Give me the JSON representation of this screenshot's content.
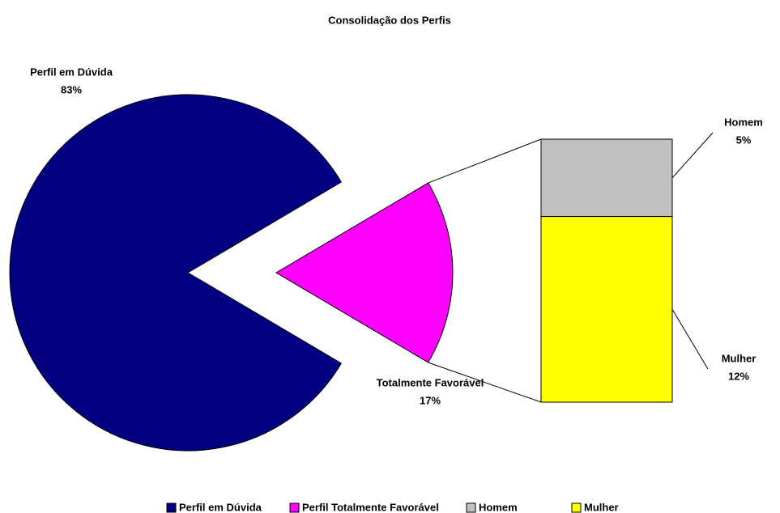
{
  "chart_data": {
    "type": "pie-of-bar",
    "title": "Consolidação dos Perfis",
    "pie": {
      "categories": [
        "Perfil em Dúvida",
        "Totalmente Favorável"
      ],
      "values": [
        83,
        17
      ],
      "value_labels": [
        "83%",
        "17%"
      ],
      "colors": [
        "#000080",
        "#ff00ff"
      ]
    },
    "bar": {
      "categories": [
        "Homem",
        "Mulher"
      ],
      "values": [
        5,
        12
      ],
      "value_labels": [
        "5%",
        "12%"
      ],
      "colors": [
        "#c0c0c0",
        "#ffff00"
      ]
    },
    "legend": [
      "Perfil em Dúvida",
      "Perfil Totalmente Favorável",
      "Homem",
      "Mulher"
    ]
  }
}
